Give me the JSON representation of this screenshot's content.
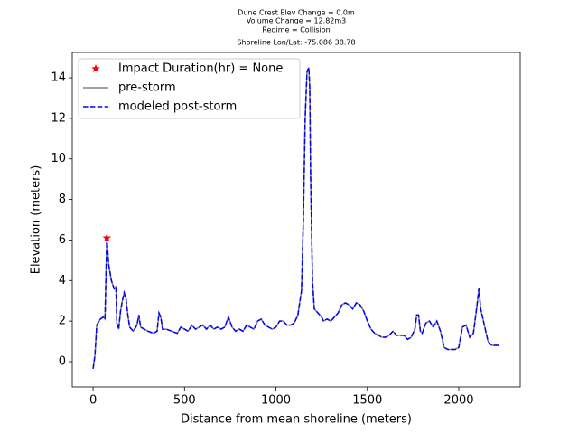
{
  "chart_data": {
    "type": "line",
    "title": [
      "Dune Crest Elev Change = 0.0m",
      "Volume Change = 12.82m3",
      "Regime = Collision",
      "Shoreline Lon/Lat: -75.086 38.78"
    ],
    "xlabel": "Distance from mean shoreline (meters)",
    "ylabel": "Elevation (meters)",
    "xlim": [
      -114,
      2336
    ],
    "ylim": [
      -1.25,
      15.25
    ],
    "xticks": [
      0,
      500,
      1000,
      1500,
      2000
    ],
    "yticks": [
      0,
      2,
      4,
      6,
      8,
      10,
      12,
      14
    ],
    "legend": "upper left",
    "x": [
      0,
      10,
      20,
      40,
      55,
      65,
      75,
      85,
      100,
      115,
      125,
      130,
      140,
      150,
      160,
      170,
      180,
      190,
      200,
      220,
      240,
      250,
      260,
      280,
      300,
      330,
      350,
      360,
      370,
      380,
      400,
      430,
      460,
      480,
      500,
      520,
      540,
      560,
      580,
      600,
      620,
      640,
      660,
      680,
      700,
      720,
      740,
      760,
      780,
      800,
      820,
      840,
      860,
      880,
      900,
      920,
      940,
      960,
      980,
      1000,
      1020,
      1040,
      1060,
      1080,
      1100,
      1120,
      1140,
      1150,
      1160,
      1170,
      1180,
      1185,
      1190,
      1200,
      1210,
      1230,
      1250,
      1260,
      1280,
      1300,
      1320,
      1340,
      1360,
      1380,
      1400,
      1420,
      1440,
      1460,
      1480,
      1500,
      1520,
      1540,
      1560,
      1580,
      1600,
      1620,
      1640,
      1660,
      1680,
      1700,
      1720,
      1740,
      1760,
      1770,
      1780,
      1790,
      1800,
      1820,
      1840,
      1860,
      1880,
      1900,
      1920,
      1940,
      1960,
      1980,
      2000,
      2020,
      2040,
      2060,
      2080,
      2100,
      2110,
      2120,
      2140,
      2160,
      2180,
      2200,
      2220
    ],
    "series": [
      {
        "name": "Impact Duration(hr) = None",
        "color": "#ff0000",
        "marker": "star",
        "x": [
          75
        ],
        "values": [
          6.1
        ]
      },
      {
        "name": "pre-storm",
        "color": "#808080",
        "linestyle": "solid",
        "values": [
          -0.35,
          0.3,
          1.8,
          2.1,
          2.2,
          2.1,
          6.1,
          4.8,
          4.0,
          3.6,
          3.7,
          1.9,
          1.6,
          2.5,
          3.0,
          3.4,
          3.1,
          2.3,
          1.7,
          1.5,
          1.8,
          2.3,
          1.7,
          1.6,
          1.5,
          1.4,
          1.5,
          2.4,
          2.2,
          1.6,
          1.6,
          1.5,
          1.4,
          1.7,
          1.6,
          1.5,
          1.8,
          1.6,
          1.7,
          1.8,
          1.6,
          1.8,
          1.6,
          1.7,
          1.6,
          1.7,
          2.2,
          1.7,
          1.5,
          1.6,
          1.5,
          1.8,
          1.7,
          1.6,
          2.0,
          2.1,
          1.8,
          1.7,
          1.6,
          1.7,
          2.0,
          2.0,
          1.8,
          1.8,
          1.9,
          2.3,
          3.5,
          7.0,
          12.0,
          14.3,
          14.5,
          13.5,
          9.0,
          4.0,
          2.6,
          2.4,
          2.2,
          2.0,
          2.1,
          2.0,
          2.2,
          2.4,
          2.8,
          2.9,
          2.8,
          2.6,
          2.9,
          2.8,
          2.5,
          2.0,
          1.6,
          1.4,
          1.3,
          1.2,
          1.2,
          1.3,
          1.5,
          1.3,
          1.3,
          1.3,
          1.1,
          1.2,
          1.6,
          2.3,
          2.3,
          1.5,
          1.4,
          1.9,
          2.0,
          1.7,
          2.0,
          1.5,
          0.7,
          0.6,
          0.6,
          0.6,
          0.7,
          1.7,
          1.8,
          1.2,
          1.4,
          2.8,
          3.6,
          2.6,
          1.8,
          1.0,
          0.8,
          0.8,
          0.8
        ]
      },
      {
        "name": "modeled post-storm",
        "color": "#0000ff",
        "linestyle": "dashed",
        "values": [
          -0.35,
          0.3,
          1.8,
          2.1,
          2.2,
          2.1,
          6.1,
          4.8,
          4.0,
          3.6,
          3.7,
          1.9,
          1.6,
          2.5,
          3.0,
          3.4,
          3.1,
          2.3,
          1.7,
          1.5,
          1.8,
          2.3,
          1.7,
          1.6,
          1.5,
          1.4,
          1.5,
          2.4,
          2.2,
          1.6,
          1.6,
          1.5,
          1.4,
          1.7,
          1.6,
          1.5,
          1.8,
          1.6,
          1.7,
          1.8,
          1.6,
          1.8,
          1.6,
          1.7,
          1.6,
          1.7,
          2.2,
          1.7,
          1.5,
          1.6,
          1.5,
          1.8,
          1.7,
          1.6,
          2.0,
          2.1,
          1.8,
          1.7,
          1.6,
          1.7,
          2.0,
          2.0,
          1.8,
          1.8,
          1.9,
          2.3,
          3.5,
          7.0,
          12.0,
          14.3,
          14.5,
          13.5,
          9.0,
          4.0,
          2.6,
          2.4,
          2.2,
          2.0,
          2.1,
          2.0,
          2.2,
          2.4,
          2.8,
          2.9,
          2.8,
          2.6,
          2.9,
          2.8,
          2.5,
          2.0,
          1.6,
          1.4,
          1.3,
          1.2,
          1.2,
          1.3,
          1.5,
          1.3,
          1.3,
          1.3,
          1.1,
          1.2,
          1.6,
          2.3,
          2.3,
          1.5,
          1.4,
          1.9,
          2.0,
          1.7,
          2.0,
          1.5,
          0.7,
          0.6,
          0.6,
          0.6,
          0.7,
          1.7,
          1.8,
          1.2,
          1.4,
          2.8,
          3.6,
          2.6,
          1.8,
          1.0,
          0.8,
          0.8,
          0.8
        ]
      }
    ]
  }
}
